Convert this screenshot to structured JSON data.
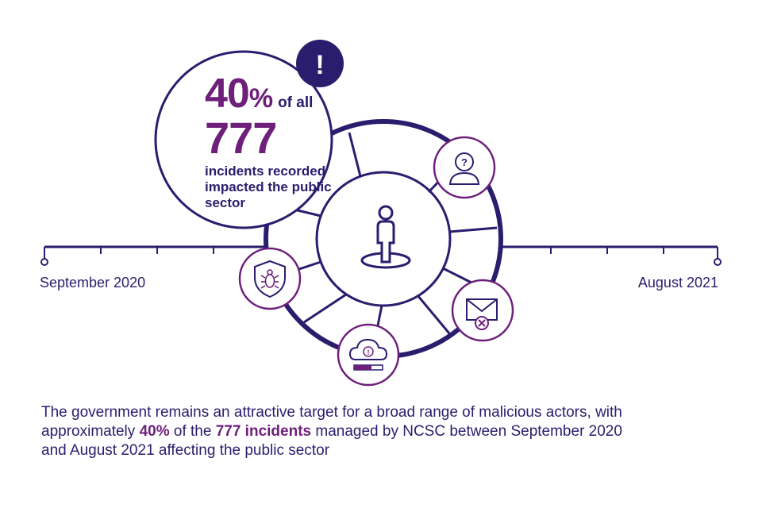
{
  "colors": {
    "navy": "#2b1d6e",
    "purple": "#6d1f7a"
  },
  "timeline": {
    "start_label": "September 2020",
    "end_label": "August 2021"
  },
  "callout": {
    "percent_number": "40",
    "percent_sign": "%",
    "of_all": "of all",
    "incidents_number": "777",
    "description": "incidents recorded impacted the public sector",
    "alert_symbol": "!"
  },
  "icons": [
    "person-icon",
    "user-question-icon",
    "email-error-icon",
    "cloud-alert-icon",
    "shield-bug-icon"
  ],
  "caption": {
    "part1": "The government remains an attractive target for a broad range of malicious actors, with approximately ",
    "highlight1": "40%",
    "part2": " of the ",
    "highlight2": "777 incidents",
    "part3": " managed by NCSC between September 2020 and August 2021 affecting the public sector"
  }
}
